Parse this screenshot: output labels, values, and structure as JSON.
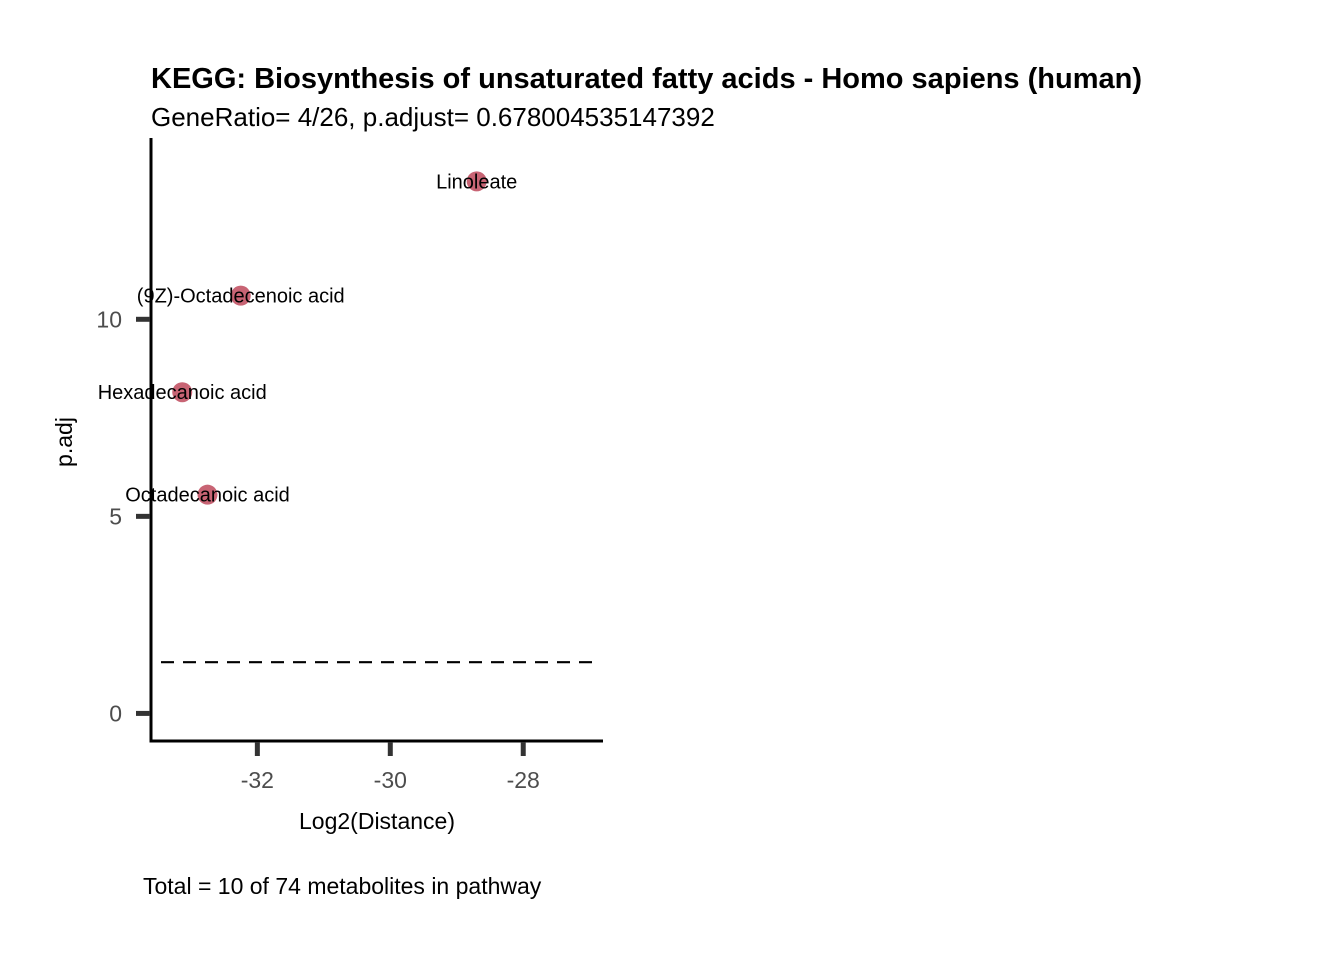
{
  "chart_data": {
    "type": "scatter",
    "title": "KEGG: Biosynthesis of unsaturated fatty acids - Homo sapiens (human)",
    "subtitle": "GeneRatio= 4/26, p.adjust= 0.678004535147392",
    "caption": "Total = 10 of 74 metabolites in pathway",
    "xlabel": "Log2(Distance)",
    "ylabel": "p.adj",
    "xlim": [
      -33.6,
      -26.8
    ],
    "ylim": [
      -0.7,
      14.6
    ],
    "xticks": [
      -32,
      -30,
      -28
    ],
    "yticks": [
      0,
      5,
      10
    ],
    "xtick_labels": [
      "-32",
      "-30",
      "-28"
    ],
    "ytick_labels": [
      "0",
      "5",
      "10"
    ],
    "threshold_line": 1.3,
    "point_color": "#c86474",
    "points": [
      {
        "label": "Linoleate",
        "x": -28.7,
        "y": 13.5
      },
      {
        "label": "(9Z)-Octadecenoic acid",
        "x": -32.25,
        "y": 10.6
      },
      {
        "label": "Hexadecanoic acid",
        "x": -33.13,
        "y": 8.15
      },
      {
        "label": "Octadecanoic acid",
        "x": -32.75,
        "y": 5.55
      }
    ],
    "grid": false,
    "legend": "none"
  }
}
